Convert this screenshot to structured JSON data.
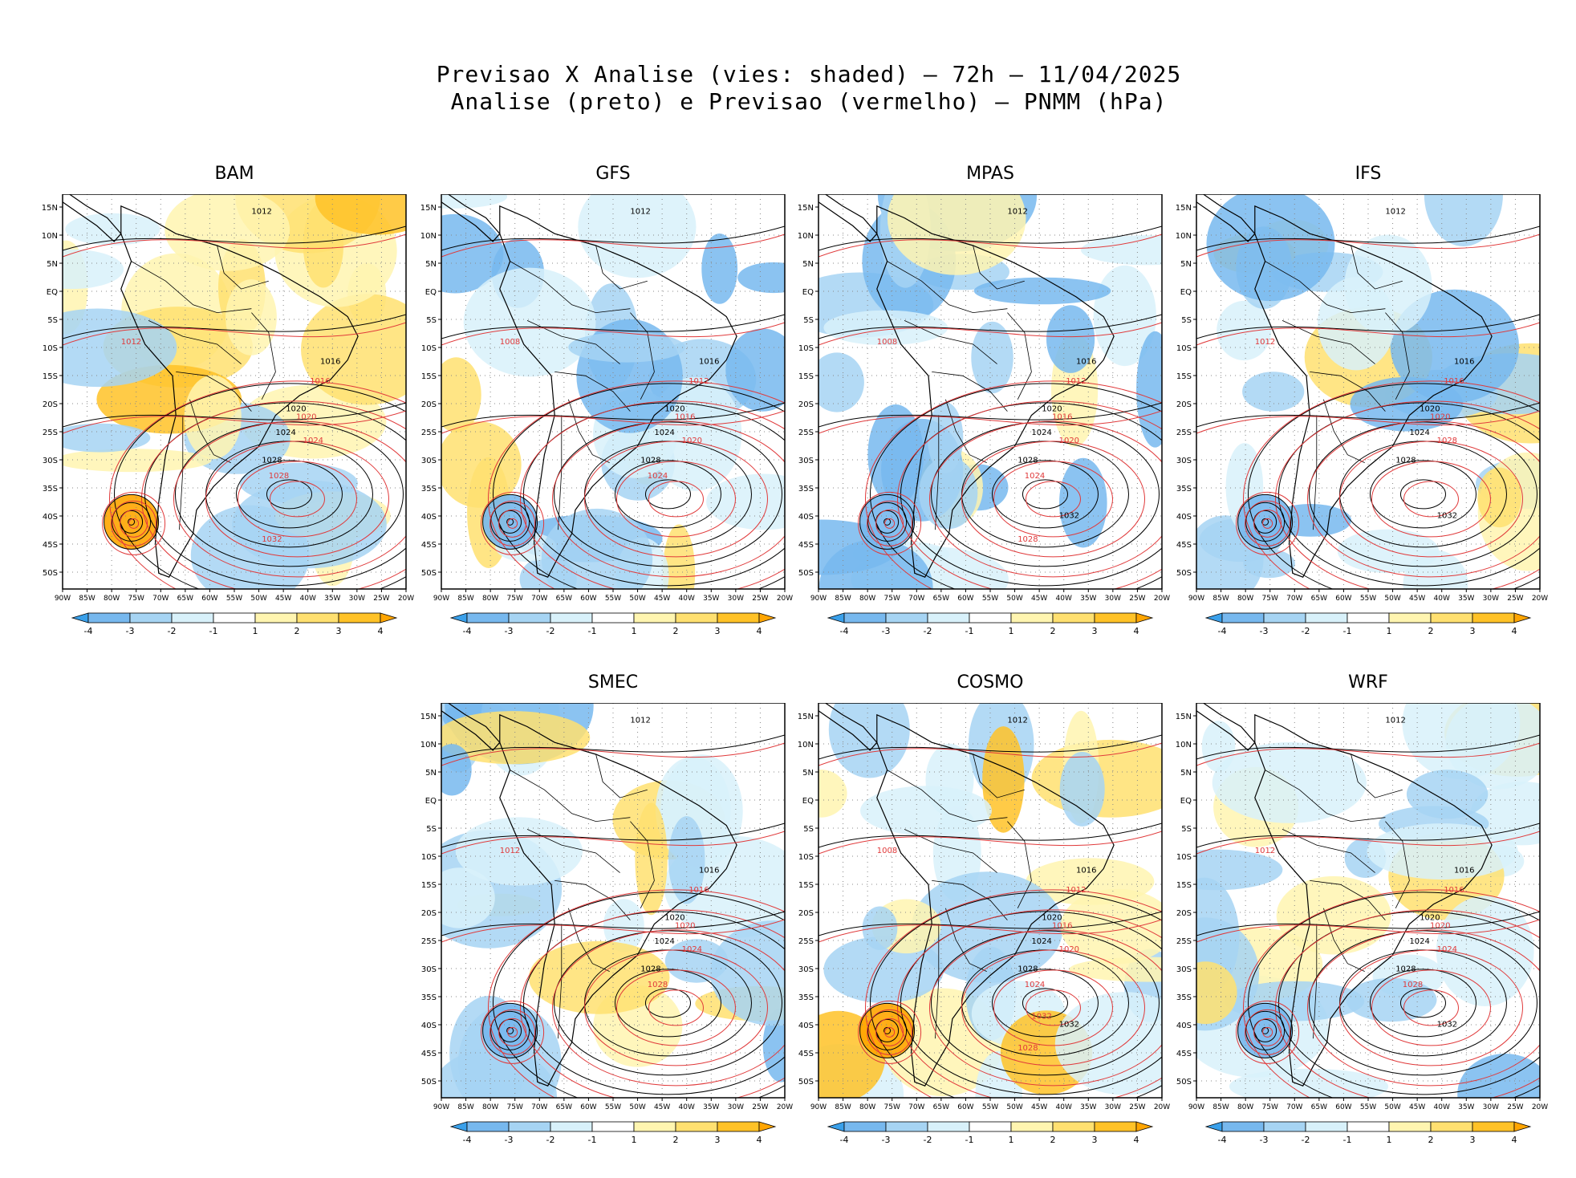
{
  "title": {
    "line1": "Previsao X Analise (vies: shaded) — 72h — 11/04/2025",
    "line2": "Analise (preto) e Previsao (vermelho) — PNMM (hPa)"
  },
  "lat_labels": [
    "15N",
    "10N",
    "5N",
    "EQ",
    "5S",
    "10S",
    "15S",
    "20S",
    "25S",
    "30S",
    "35S",
    "40S",
    "45S",
    "50S"
  ],
  "lon_labels": [
    "90W",
    "85W",
    "80W",
    "75W",
    "70W",
    "65W",
    "60W",
    "55W",
    "50W",
    "45W",
    "40W",
    "35W",
    "30W",
    "25W",
    "20W"
  ],
  "colorbar": {
    "labels": [
      "-4",
      "-3",
      "-2",
      "-1",
      "1",
      "2",
      "3",
      "4"
    ],
    "colors": [
      "#3aa0ea",
      "#77b8ee",
      "#a6d4f3",
      "#d8f1fa",
      "#ffffff",
      "#fff5b0",
      "#ffe070",
      "#ffc227",
      "#ffa500"
    ]
  },
  "colors": {
    "analysis": "#000000",
    "forecast": "#e0393a",
    "grid": "#888888"
  },
  "panels": [
    {
      "name": "BAM",
      "isobars": {
        "analysis": [
          "1012",
          "1016",
          "1020",
          "1024",
          "1028"
        ],
        "forecast": [
          "1012",
          "1016",
          "1020",
          "1024",
          "1028",
          "1032"
        ]
      }
    },
    {
      "name": "GFS",
      "isobars": {
        "analysis": [
          "1012",
          "1016",
          "1020",
          "1024",
          "1028"
        ],
        "forecast": [
          "1008",
          "1012",
          "1016",
          "1020",
          "1024"
        ]
      }
    },
    {
      "name": "MPAS",
      "isobars": {
        "analysis": [
          "1012",
          "1016",
          "1020",
          "1024",
          "1028",
          "1032"
        ],
        "forecast": [
          "1008",
          "1012",
          "1016",
          "1020",
          "1024",
          "1028"
        ]
      }
    },
    {
      "name": "IFS",
      "isobars": {
        "analysis": [
          "1012",
          "1016",
          "1020",
          "1024",
          "1028",
          "1032"
        ],
        "forecast": [
          "1012",
          "1016",
          "1020",
          "1028"
        ]
      }
    },
    {
      "name": "SMEC",
      "isobars": {
        "analysis": [
          "1012",
          "1016",
          "1020",
          "1024",
          "1028"
        ],
        "forecast": [
          "1012",
          "1016",
          "1020",
          "1024",
          "1028"
        ]
      }
    },
    {
      "name": "COSMO",
      "isobars": {
        "analysis": [
          "1012",
          "1016",
          "1020",
          "1024",
          "1028",
          "1032"
        ],
        "forecast": [
          "1008",
          "1012",
          "1016",
          "1020",
          "1024",
          "1028",
          "1032"
        ]
      }
    },
    {
      "name": "WRF",
      "isobars": {
        "analysis": [
          "1012",
          "1016",
          "1020",
          "1024",
          "1028",
          "1032"
        ],
        "forecast": [
          "1012",
          "1016",
          "1020",
          "1024",
          "1028"
        ]
      }
    }
  ]
}
